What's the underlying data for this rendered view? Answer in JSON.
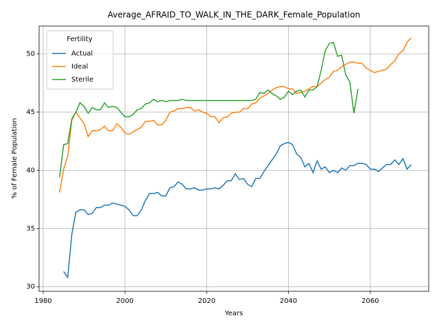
{
  "chart_data": {
    "type": "line",
    "title": "Average_AFRAID_TO_WALK_IN_THE_DARK_Female_Population",
    "x_label": "Years",
    "y_label": "% of Female Population",
    "legend_title": "Fertility",
    "legend": "upper left",
    "grid": true,
    "xlim": [
      1979,
      2074.3
    ],
    "ylim": [
      29.6,
      52.4
    ],
    "xticks": [
      1980,
      2000,
      2020,
      2040,
      2060
    ],
    "yticks": [
      30,
      35,
      40,
      45,
      50
    ],
    "x": [
      1984,
      1985,
      1986,
      1987,
      1988,
      1989,
      1990,
      1991,
      1992,
      1993,
      1994,
      1995,
      1996,
      1997,
      1998,
      1999,
      2000,
      2001,
      2002,
      2003,
      2004,
      2005,
      2006,
      2007,
      2008,
      2009,
      2010,
      2011,
      2012,
      2013,
      2014,
      2015,
      2016,
      2017,
      2018,
      2019,
      2020,
      2021,
      2022,
      2023,
      2024,
      2025,
      2026,
      2027,
      2028,
      2029,
      2030,
      2031,
      2032,
      2033,
      2034,
      2035,
      2036,
      2037,
      2038,
      2039,
      2040,
      2041,
      2042,
      2043,
      2044,
      2045,
      2046,
      2047,
      2048,
      2049,
      2050,
      2051,
      2052,
      2053,
      2054,
      2055,
      2056,
      2057,
      2058,
      2059,
      2060,
      2061,
      2062,
      2063,
      2064,
      2065,
      2066,
      2067,
      2068,
      2069,
      2070
    ],
    "series": [
      {
        "name": "Actual",
        "color": "#1f77b4",
        "values": [
          null,
          31.3,
          30.8,
          34.5,
          36.4,
          36.6,
          36.6,
          36.2,
          36.3,
          36.8,
          36.8,
          37.0,
          37.0,
          37.2,
          37.1,
          37.0,
          36.9,
          36.6,
          36.1,
          36.1,
          36.6,
          37.4,
          38.0,
          38.0,
          38.1,
          37.8,
          37.8,
          38.5,
          38.6,
          39.0,
          38.8,
          38.4,
          38.4,
          38.5,
          38.3,
          38.3,
          38.4,
          38.4,
          38.5,
          38.4,
          38.7,
          39.1,
          39.1,
          39.7,
          39.2,
          39.3,
          38.8,
          38.6,
          39.3,
          39.3,
          39.9,
          40.4,
          40.9,
          41.4,
          42.1,
          42.3,
          42.4,
          42.2,
          41.4,
          41.1,
          40.3,
          40.6,
          39.8,
          40.8,
          40.1,
          40.3,
          39.8,
          40.0,
          39.8,
          40.2,
          40.0,
          40.4,
          40.4,
          40.6,
          40.6,
          40.5,
          40.1,
          40.1,
          39.9,
          40.2,
          40.5,
          40.5,
          40.9,
          40.5,
          41.0,
          40.1,
          40.5
        ]
      },
      {
        "name": "Ideal",
        "color": "#ff7f0e",
        "values": [
          38.1,
          40.1,
          41.2,
          44.3,
          45.0,
          44.5,
          44.0,
          42.9,
          43.4,
          43.4,
          43.5,
          43.8,
          43.4,
          43.4,
          44.0,
          43.7,
          43.2,
          43.1,
          43.3,
          43.5,
          43.7,
          44.2,
          44.2,
          44.3,
          43.9,
          43.9,
          44.3,
          45.0,
          45.1,
          45.3,
          45.3,
          45.4,
          45.4,
          45.1,
          45.2,
          45.0,
          44.9,
          44.6,
          44.6,
          44.1,
          44.5,
          44.6,
          44.9,
          45.0,
          45.0,
          45.3,
          45.3,
          45.7,
          45.8,
          46.2,
          46.4,
          46.6,
          46.9,
          47.1,
          47.2,
          47.2,
          47.0,
          47.0,
          46.6,
          46.7,
          46.8,
          47.0,
          47.2,
          47.2,
          47.5,
          47.8,
          48.0,
          48.5,
          48.6,
          48.9,
          49.1,
          49.3,
          49.3,
          49.2,
          49.2,
          48.8,
          48.6,
          48.4,
          48.5,
          48.6,
          48.7,
          49.1,
          49.4,
          50.0,
          50.3,
          51.0,
          51.4
        ]
      },
      {
        "name": "Sterile",
        "color": "#2ca02c",
        "values": [
          39.4,
          42.2,
          42.3,
          44.4,
          45.0,
          45.8,
          45.5,
          44.9,
          45.4,
          45.2,
          45.2,
          45.8,
          45.4,
          45.5,
          45.4,
          45.0,
          44.6,
          44.6,
          44.8,
          45.2,
          45.3,
          45.7,
          45.8,
          46.1,
          45.9,
          46.0,
          45.9,
          46.0,
          46.0,
          46.0,
          46.1,
          46.0,
          46.0,
          46.0,
          46.0,
          46.0,
          46.0,
          46.0,
          46.0,
          46.0,
          46.0,
          46.0,
          46.0,
          46.0,
          46.0,
          46.0,
          46.0,
          46.0,
          46.1,
          46.7,
          46.6,
          46.9,
          46.6,
          46.4,
          46.1,
          46.3,
          46.8,
          46.5,
          46.8,
          46.9,
          46.3,
          46.9,
          46.9,
          47.2,
          48.6,
          50.3,
          50.9,
          51.0,
          49.8,
          49.9,
          48.2,
          47.6,
          44.9,
          47.0,
          null,
          null,
          null,
          null,
          null,
          null,
          null,
          null,
          null,
          null,
          null,
          null,
          null
        ]
      }
    ]
  }
}
